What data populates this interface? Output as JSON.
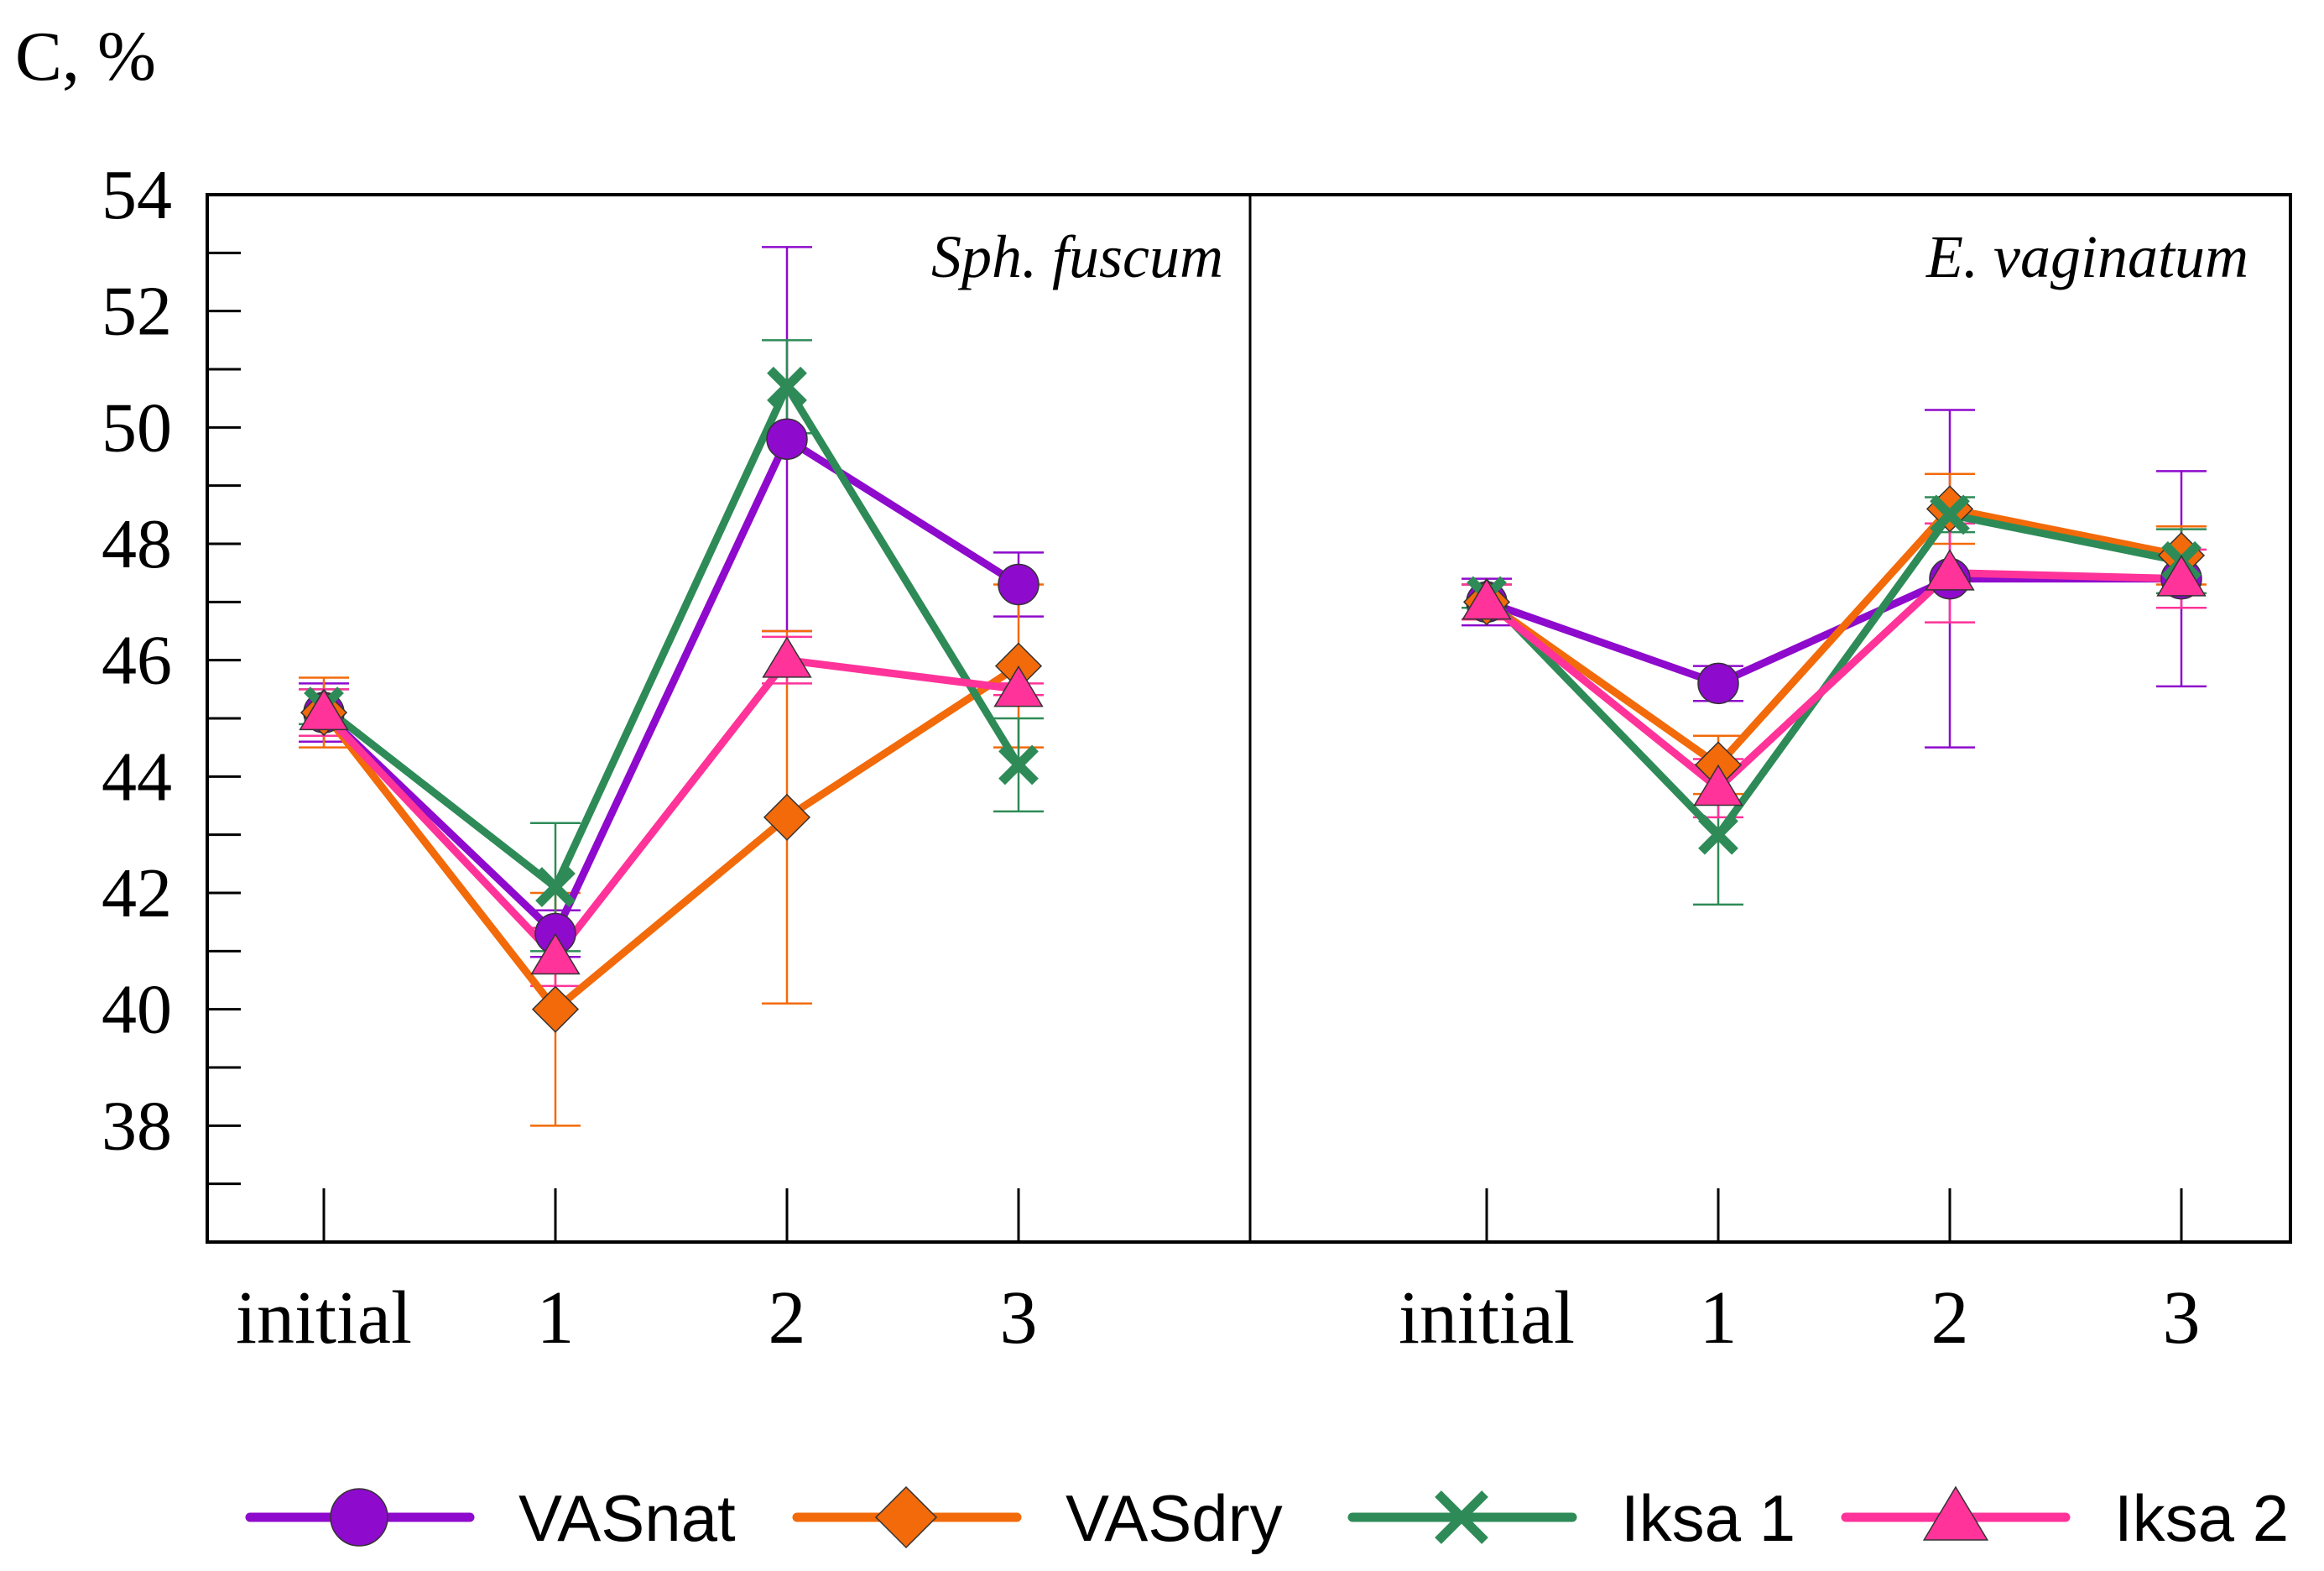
{
  "chart_data": {
    "type": "line",
    "ylabel": "C, %",
    "ylim": [
      36,
      54
    ],
    "yticks": [
      38,
      40,
      42,
      44,
      46,
      48,
      50,
      52,
      54
    ],
    "categories": [
      "initial",
      "1",
      "2",
      "3"
    ],
    "legend_position": "bottom",
    "grid": false,
    "series_styles": [
      {
        "name": "VASnat",
        "color": "#8E0ACC",
        "marker": "circle"
      },
      {
        "name": "VASdry",
        "color": "#F26A0A",
        "marker": "diamond"
      },
      {
        "name": "Iksa 1",
        "color": "#2E8B57",
        "marker": "x"
      },
      {
        "name": "Iksa 2",
        "color": "#FF3399",
        "marker": "triangle"
      }
    ],
    "panels": [
      {
        "title": "Sph. fuscum",
        "series": [
          {
            "name": "VASnat",
            "values": [
              45.1,
              41.3,
              49.8,
              47.3
            ],
            "errors": [
              0.5,
              0.4,
              3.3,
              0.55
            ]
          },
          {
            "name": "VASdry",
            "values": [
              45.1,
              40.0,
              43.3,
              45.9
            ],
            "errors": [
              0.6,
              2.0,
              3.2,
              1.4
            ]
          },
          {
            "name": "Iksa 1",
            "values": [
              45.2,
              42.1,
              50.7,
              44.2
            ],
            "errors": [
              0.3,
              1.1,
              0.8,
              0.8
            ]
          },
          {
            "name": "Iksa 2",
            "values": [
              45.1,
              40.9,
              46.0,
              45.5
            ],
            "errors": [
              0.4,
              0.5,
              0.4,
              0.1
            ]
          }
        ]
      },
      {
        "title": "E. vaginatum",
        "series": [
          {
            "name": "VASnat",
            "values": [
              47.0,
              45.6,
              47.4,
              47.4
            ],
            "errors": [
              0.4,
              0.3,
              2.9,
              1.85
            ]
          },
          {
            "name": "VASdry",
            "values": [
              47.0,
              44.2,
              48.6,
              47.8
            ],
            "errors": [
              0.3,
              0.5,
              0.6,
              0.5
            ]
          },
          {
            "name": "Iksa 1",
            "values": [
              47.1,
              43.0,
              48.5,
              47.7
            ],
            "errors": [
              0.2,
              1.2,
              0.3,
              0.55
            ]
          },
          {
            "name": "Iksa 2",
            "values": [
              47.0,
              43.8,
              47.5,
              47.4
            ],
            "errors": [
              0.3,
              0.5,
              0.85,
              0.5
            ]
          }
        ]
      }
    ]
  }
}
